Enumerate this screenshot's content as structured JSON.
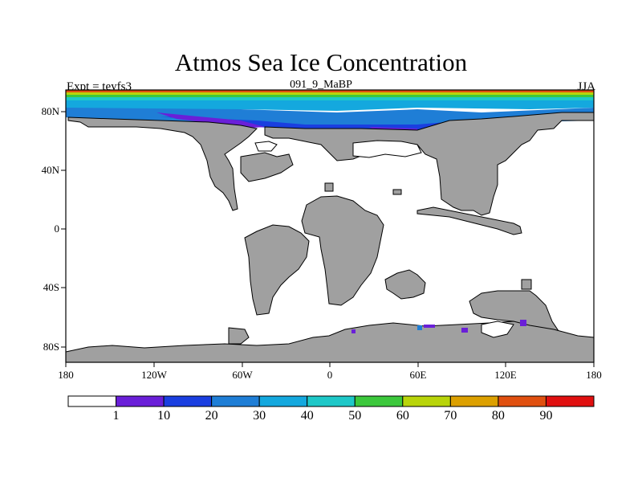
{
  "header": {
    "title": "Atmos Sea Ice Concentration",
    "subtitle": "091_9_MaBP",
    "left_label": "Expt = teyfs3",
    "right_label": "JJA"
  },
  "map": {
    "lon_range": [
      -180,
      180
    ],
    "lat_range": [
      -90,
      90
    ],
    "land_color": "#a0a0a0",
    "ocean_color": "#ffffff",
    "x_ticks": [
      "180",
      "120W",
      "60W",
      "0",
      "60E",
      "120E",
      "180"
    ],
    "y_ticks": [
      "80N",
      "40N",
      "0",
      "40S",
      "80S"
    ]
  },
  "colorbar": {
    "labels": [
      "1",
      "10",
      "20",
      "30",
      "40",
      "50",
      "60",
      "70",
      "80",
      "90"
    ],
    "colors": [
      "#ffffff",
      "#6a1fd8",
      "#1a3fe0",
      "#1f7ed6",
      "#14a8de",
      "#1ec8c8",
      "#3cc83c",
      "#b8d40a",
      "#dca000",
      "#e05010",
      "#e01010"
    ]
  }
}
